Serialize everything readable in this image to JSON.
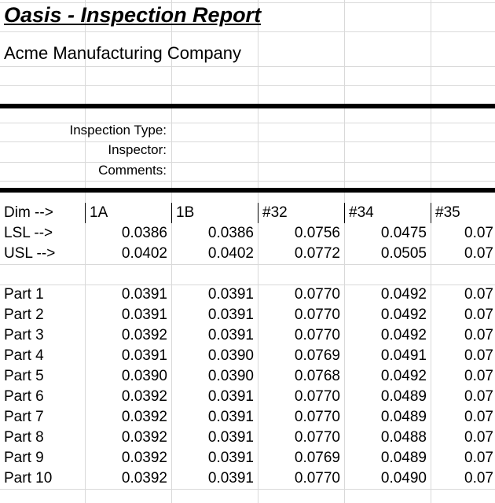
{
  "report": {
    "title": "Oasis - Inspection Report",
    "company": "Acme Manufacturing Company"
  },
  "inspection_fields": {
    "type_label": "Inspection Type:",
    "inspector_label": "Inspector:",
    "comments_label": "Comments:"
  },
  "table": {
    "dim_label": "Dim -->",
    "lsl_label": "LSL -->",
    "usl_label": "USL -->",
    "columns": [
      "1A",
      "1B",
      "#32",
      "#34",
      "#35"
    ],
    "lsl": [
      "0.0386",
      "0.0386",
      "0.0756",
      "0.0475",
      "0.07"
    ],
    "usl": [
      "0.0402",
      "0.0402",
      "0.0772",
      "0.0505",
      "0.07"
    ],
    "parts": [
      {
        "label": "Part 1",
        "values": [
          "0.0391",
          "0.0391",
          "0.0770",
          "0.0492",
          "0.07"
        ]
      },
      {
        "label": "Part 2",
        "values": [
          "0.0391",
          "0.0391",
          "0.0770",
          "0.0492",
          "0.07"
        ]
      },
      {
        "label": "Part 3",
        "values": [
          "0.0392",
          "0.0391",
          "0.0770",
          "0.0492",
          "0.07"
        ]
      },
      {
        "label": "Part 4",
        "values": [
          "0.0391",
          "0.0390",
          "0.0769",
          "0.0491",
          "0.07"
        ]
      },
      {
        "label": "Part 5",
        "values": [
          "0.0390",
          "0.0390",
          "0.0768",
          "0.0492",
          "0.07"
        ]
      },
      {
        "label": "Part 6",
        "values": [
          "0.0392",
          "0.0391",
          "0.0770",
          "0.0489",
          "0.07"
        ]
      },
      {
        "label": "Part 7",
        "values": [
          "0.0392",
          "0.0391",
          "0.0770",
          "0.0489",
          "0.07"
        ]
      },
      {
        "label": "Part 8",
        "values": [
          "0.0392",
          "0.0391",
          "0.0770",
          "0.0488",
          "0.07"
        ]
      },
      {
        "label": "Part 9",
        "values": [
          "0.0392",
          "0.0391",
          "0.0769",
          "0.0489",
          "0.07"
        ]
      },
      {
        "label": "Part 10",
        "values": [
          "0.0392",
          "0.0391",
          "0.0770",
          "0.0490",
          "0.07"
        ]
      }
    ]
  }
}
